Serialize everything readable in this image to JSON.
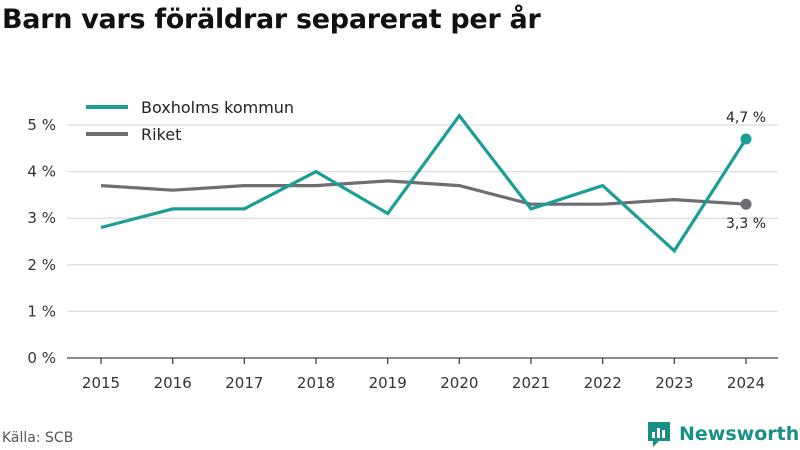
{
  "chart_data": {
    "type": "line",
    "title": "Barn vars föräldrar separerat per år",
    "x": [
      "2015",
      "2016",
      "2017",
      "2018",
      "2019",
      "2020",
      "2021",
      "2022",
      "2023",
      "2024"
    ],
    "series": [
      {
        "name": "Boxholms kommun",
        "color": "#1b9e95",
        "values": [
          2.8,
          3.2,
          3.2,
          4.0,
          3.1,
          5.2,
          3.2,
          3.7,
          2.3,
          4.7
        ],
        "end_label": "4,7 %"
      },
      {
        "name": "Riket",
        "color": "#6e6e72",
        "values": [
          3.7,
          3.6,
          3.7,
          3.7,
          3.8,
          3.7,
          3.3,
          3.3,
          3.4,
          3.3
        ],
        "end_label": "3,3 %"
      }
    ],
    "ylim": [
      0,
      5
    ],
    "yticks": [
      0,
      1,
      2,
      3,
      4,
      5
    ],
    "ytick_labels": [
      "0 %",
      "1 %",
      "2 %",
      "3 %",
      "4 %",
      "5 %"
    ],
    "grid": true,
    "legend_position": "top-left"
  },
  "source": "Källa: SCB",
  "brand": {
    "name": "Newsworthy",
    "icon": "newsworthy-logo-icon",
    "color": "#1a8f88"
  }
}
